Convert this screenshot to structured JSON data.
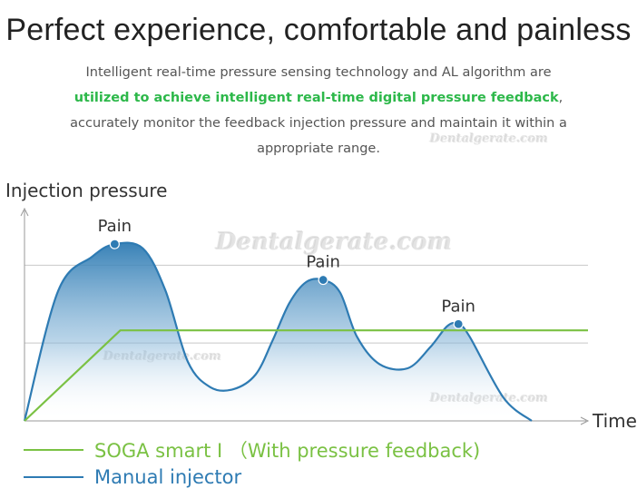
{
  "header": {
    "title": "Perfect experience, comfortable and painless",
    "desc_part1": "Intelligent real-time pressure sensing technology and AL algorithm are ",
    "desc_highlight": "utilized to achieve intelligent real-time digital pressure feedback",
    "desc_part2": ", accurately monitor the feedback injection pressure and maintain it within a appropriate range."
  },
  "watermarks": [
    "Dentalgerate.com",
    "Dentalgerate.com",
    "Dentalgerate.com",
    "Dentalgerate.com"
  ],
  "chart_data": {
    "type": "line",
    "ylabel": "Injection pressure",
    "xlabel": "Time",
    "xlim": [
      0,
      100
    ],
    "ylim": [
      0,
      100
    ],
    "reference_lines": [
      37,
      74
    ],
    "series": [
      {
        "name": "Manual injector",
        "color": "#2e7bb3",
        "fill": true,
        "points": [
          [
            0,
            0
          ],
          [
            6,
            62
          ],
          [
            12,
            78
          ],
          [
            16,
            84
          ],
          [
            21,
            82
          ],
          [
            25,
            62
          ],
          [
            29,
            28
          ],
          [
            33,
            16
          ],
          [
            37,
            15
          ],
          [
            41,
            22
          ],
          [
            44,
            38
          ],
          [
            47,
            56
          ],
          [
            50,
            66
          ],
          [
            53,
            67
          ],
          [
            56,
            61
          ],
          [
            59,
            40
          ],
          [
            63,
            27
          ],
          [
            68,
            25
          ],
          [
            72,
            35
          ],
          [
            75,
            45
          ],
          [
            77,
            46
          ],
          [
            79,
            40
          ],
          [
            85,
            11
          ],
          [
            90,
            0
          ]
        ]
      },
      {
        "name": "SOGA smart I （With pressure feedback)",
        "color": "#7ac143",
        "fill": false,
        "points": [
          [
            0,
            0
          ],
          [
            17,
            43
          ],
          [
            100,
            43
          ]
        ]
      }
    ],
    "annotations": [
      {
        "text": "Pain",
        "x": 16,
        "y": 84
      },
      {
        "text": "Pain",
        "x": 53,
        "y": 67
      },
      {
        "text": "Pain",
        "x": 77,
        "y": 46
      }
    ],
    "legend": [
      {
        "label": "SOGA smart I （With pressure feedback)",
        "color": "#7ac143"
      },
      {
        "label": "Manual injector",
        "color": "#2e7bb3"
      }
    ]
  }
}
